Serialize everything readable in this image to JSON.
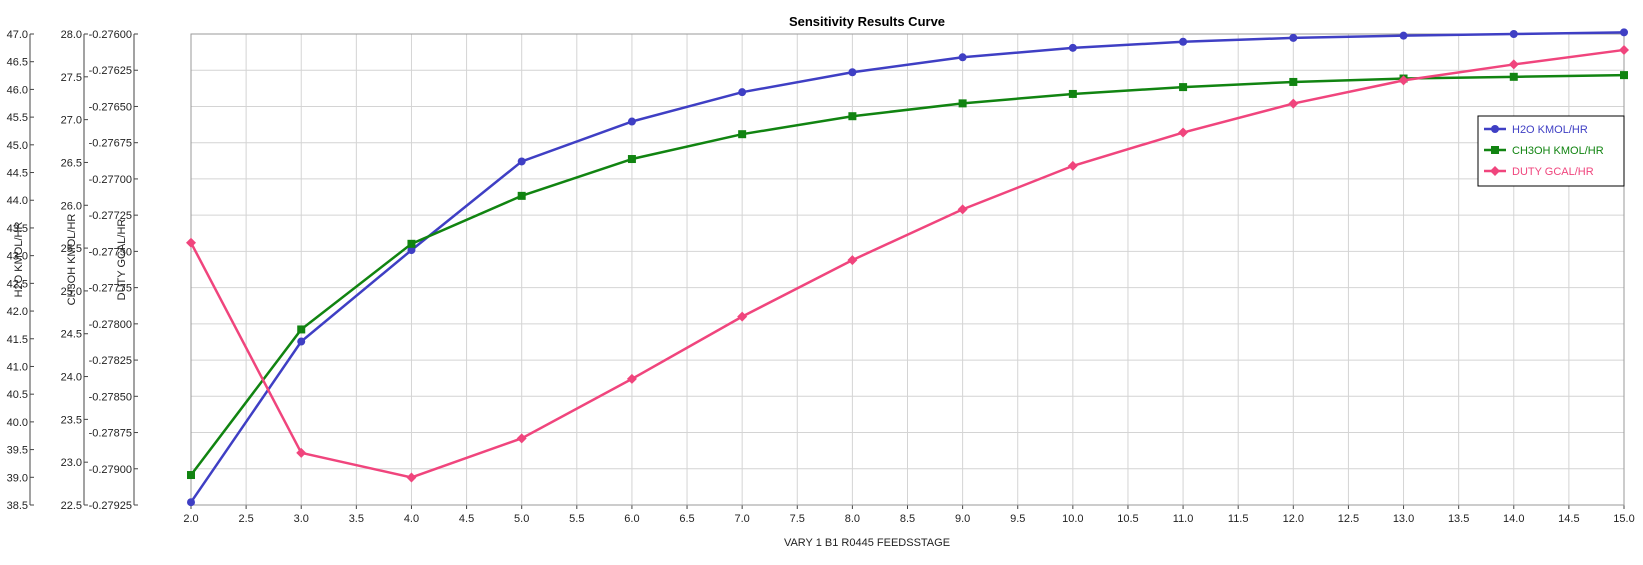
{
  "chart_data": {
    "type": "line",
    "title": "Sensitivity Results Curve",
    "xlabel": "VARY   1 B1 R0445 FEEDSSTAGE",
    "x": [
      2,
      3,
      4,
      5,
      6,
      7,
      8,
      9,
      10,
      11,
      12,
      13,
      14,
      15
    ],
    "xlim": [
      2.0,
      15.0
    ],
    "x_ticks": [
      "2.0",
      "2.5",
      "3.0",
      "3.5",
      "4.0",
      "4.5",
      "5.0",
      "5.5",
      "6.0",
      "6.5",
      "7.0",
      "7.5",
      "8.0",
      "8.5",
      "9.0",
      "9.5",
      "10.0",
      "10.5",
      "11.0",
      "11.5",
      "12.0",
      "12.5",
      "13.0",
      "13.5",
      "14.0",
      "14.5",
      "15.0"
    ],
    "grid": true,
    "legend_position": "right",
    "axes": [
      {
        "label": "H2O KMOL/HR",
        "ylim": [
          38.5,
          47.0
        ],
        "ticks": [
          "47.0",
          "46.5",
          "46.0",
          "45.5",
          "45.0",
          "44.5",
          "44.0",
          "43.5",
          "43.0",
          "42.5",
          "42.0",
          "41.5",
          "41.0",
          "40.5",
          "40.0",
          "39.5",
          "39.0",
          "38.5"
        ]
      },
      {
        "label": "CH3OH KMOL/HR",
        "ylim": [
          22.5,
          28.0
        ],
        "ticks": [
          "28.0",
          "27.5",
          "27.0",
          "26.5",
          "26.0",
          "25.5",
          "25.0",
          "24.5",
          "24.0",
          "23.5",
          "23.0",
          "22.5"
        ]
      },
      {
        "label": "DUTY GCAL/HR",
        "ylim": [
          -0.27925,
          -0.276
        ],
        "ticks": [
          "-0.27600",
          "-0.27625",
          "-0.27650",
          "-0.27675",
          "-0.27700",
          "-0.27725",
          "-0.27750",
          "-0.27775",
          "-0.27800",
          "-0.27825",
          "-0.27850",
          "-0.27875",
          "-0.27900",
          "-0.27925"
        ]
      }
    ],
    "series": [
      {
        "name": "H2O KMOL/HR",
        "axis": 0,
        "color": "#3f3fc4",
        "marker": "circle",
        "values": [
          38.55,
          41.45,
          43.1,
          44.7,
          45.42,
          45.95,
          46.31,
          46.58,
          46.75,
          46.86,
          46.93,
          46.97,
          47.0,
          47.03
        ]
      },
      {
        "name": "CH3OH KMOL/HR",
        "axis": 1,
        "color": "#118411",
        "marker": "square",
        "values": [
          22.85,
          24.55,
          25.55,
          26.11,
          26.54,
          26.83,
          27.04,
          27.19,
          27.3,
          27.38,
          27.44,
          27.48,
          27.5,
          27.52
        ]
      },
      {
        "name": "DUTY GCAL/HR",
        "axis": 2,
        "color": "#f0457d",
        "marker": "diamond",
        "values": [
          -0.27744,
          -0.27889,
          -0.27906,
          -0.27879,
          -0.27838,
          -0.27795,
          -0.27756,
          -0.27721,
          -0.27691,
          -0.27668,
          -0.27648,
          -0.27632,
          -0.27621,
          -0.27611
        ]
      }
    ]
  }
}
